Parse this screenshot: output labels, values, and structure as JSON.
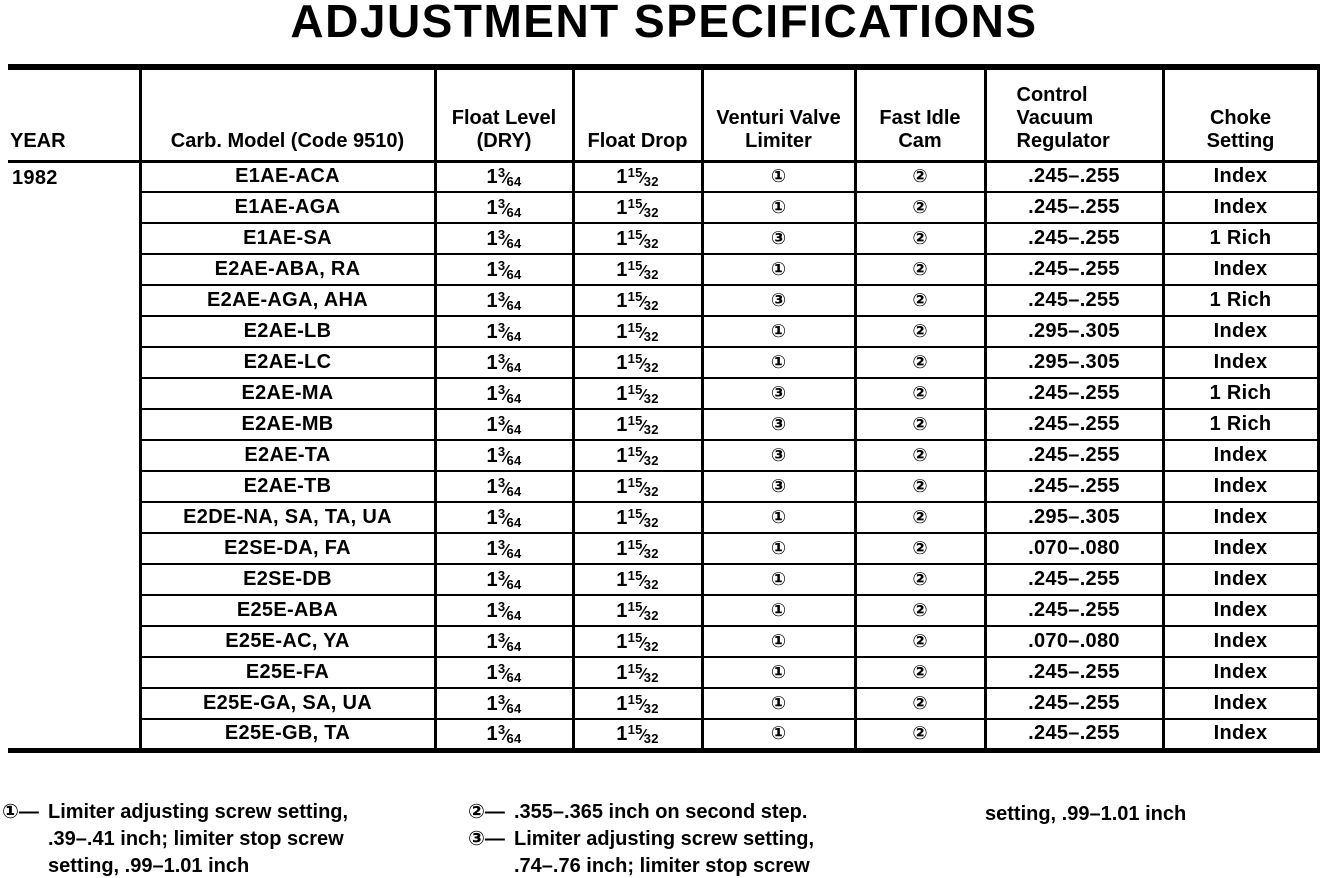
{
  "title": "ADJUSTMENT SPECIFICATIONS",
  "table": {
    "year": "1982",
    "headers": [
      {
        "label": "YEAR"
      },
      {
        "label": "Carb. Model (Code 9510)"
      },
      {
        "label": "Float Level\n(DRY)"
      },
      {
        "label": "Float Drop"
      },
      {
        "label": "Venturi Valve\nLimiter"
      },
      {
        "label": "Fast Idle\nCam"
      },
      {
        "label": "Control\nVacuum\nRegulator"
      },
      {
        "label": "Choke\nSetting"
      }
    ],
    "rows": [
      {
        "model": "E1AE-ACA",
        "float_level": "1 3/64",
        "float_drop": "1 15/32",
        "venturi": "①",
        "fast_idle": "②",
        "regulator": ".245–.255",
        "choke": "Index"
      },
      {
        "model": "E1AE-AGA",
        "float_level": "1 3/64",
        "float_drop": "1 15/32",
        "venturi": "①",
        "fast_idle": "②",
        "regulator": ".245–.255",
        "choke": "Index"
      },
      {
        "model": "E1AE-SA",
        "float_level": "1 3/64",
        "float_drop": "1 15/32",
        "venturi": "③",
        "fast_idle": "②",
        "regulator": ".245–.255",
        "choke": "1 Rich"
      },
      {
        "model": "E2AE-ABA, RA",
        "float_level": "1 3/64",
        "float_drop": "1 15/32",
        "venturi": "①",
        "fast_idle": "②",
        "regulator": ".245–.255",
        "choke": "Index"
      },
      {
        "model": "E2AE-AGA, AHA",
        "float_level": "1 3/64",
        "float_drop": "1 15/32",
        "venturi": "③",
        "fast_idle": "②",
        "regulator": ".245–.255",
        "choke": "1 Rich"
      },
      {
        "model": "E2AE-LB",
        "float_level": "1 3/64",
        "float_drop": "1 15/32",
        "venturi": "①",
        "fast_idle": "②",
        "regulator": ".295–.305",
        "choke": "Index"
      },
      {
        "model": "E2AE-LC",
        "float_level": "1 3/64",
        "float_drop": "1 15/32",
        "venturi": "①",
        "fast_idle": "②",
        "regulator": ".295–.305",
        "choke": "Index"
      },
      {
        "model": "E2AE-MA",
        "float_level": "1 3/64",
        "float_drop": "1 15/32",
        "venturi": "③",
        "fast_idle": "②",
        "regulator": ".245–.255",
        "choke": "1 Rich"
      },
      {
        "model": "E2AE-MB",
        "float_level": "1 3/64",
        "float_drop": "1 15/32",
        "venturi": "③",
        "fast_idle": "②",
        "regulator": ".245–.255",
        "choke": "1 Rich"
      },
      {
        "model": "E2AE-TA",
        "float_level": "1 3/64",
        "float_drop": "1 15/32",
        "venturi": "③",
        "fast_idle": "②",
        "regulator": ".245–.255",
        "choke": "Index"
      },
      {
        "model": "E2AE-TB",
        "float_level": "1 3/64",
        "float_drop": "1 15/32",
        "venturi": "③",
        "fast_idle": "②",
        "regulator": ".245–.255",
        "choke": "Index"
      },
      {
        "model": "E2DE-NA, SA, TA, UA",
        "float_level": "1 3/64",
        "float_drop": "1 15/32",
        "venturi": "①",
        "fast_idle": "②",
        "regulator": ".295–.305",
        "choke": "Index"
      },
      {
        "model": "E2SE-DA, FA",
        "float_level": "1 3/64",
        "float_drop": "1 15/32",
        "venturi": "①",
        "fast_idle": "②",
        "regulator": ".070–.080",
        "choke": "Index"
      },
      {
        "model": "E2SE-DB",
        "float_level": "1 3/64",
        "float_drop": "1 15/32",
        "venturi": "①",
        "fast_idle": "②",
        "regulator": ".245–.255",
        "choke": "Index"
      },
      {
        "model": "E25E-ABA",
        "float_level": "1 3/64",
        "float_drop": "1 15/32",
        "venturi": "①",
        "fast_idle": "②",
        "regulator": ".245–.255",
        "choke": "Index"
      },
      {
        "model": "E25E-AC, YA",
        "float_level": "1 3/64",
        "float_drop": "1 15/32",
        "venturi": "①",
        "fast_idle": "②",
        "regulator": ".070–.080",
        "choke": "Index"
      },
      {
        "model": "E25E-FA",
        "float_level": "1 3/64",
        "float_drop": "1 15/32",
        "venturi": "①",
        "fast_idle": "②",
        "regulator": ".245–.255",
        "choke": "Index"
      },
      {
        "model": "E25E-GA, SA, UA",
        "float_level": "1 3/64",
        "float_drop": "1 15/32",
        "venturi": "①",
        "fast_idle": "②",
        "regulator": ".245–.255",
        "choke": "Index"
      },
      {
        "model": "E25E-GB, TA",
        "float_level": "1 3/64",
        "float_drop": "1 15/32",
        "venturi": "①",
        "fast_idle": "②",
        "regulator": ".245–.255",
        "choke": "Index"
      }
    ]
  },
  "footnotes": {
    "fn1": {
      "prefix": "①—",
      "text": "Limiter adjusting screw setting,\n.39–.41 inch; limiter stop screw\nsetting, .99–1.01 inch"
    },
    "fn2": {
      "prefix": "②—",
      "text": ".355–.365 inch on second step."
    },
    "fn3": {
      "prefix": "③—",
      "text": "Limiter adjusting screw setting,\n.74–.76 inch; limiter stop screw"
    },
    "fn3_continued": {
      "text": "setting, .99–1.01 inch"
    }
  }
}
